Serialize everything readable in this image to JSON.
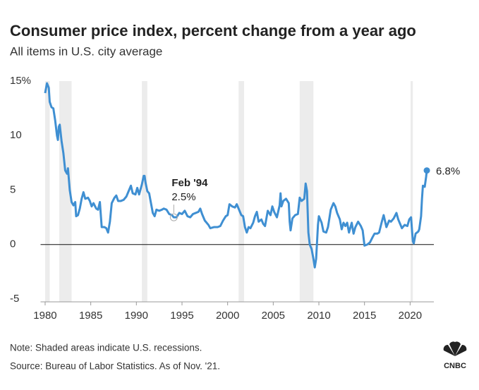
{
  "chart_data": {
    "type": "line",
    "title": "Consumer price index, percent change from a year ago",
    "subtitle": "All items in U.S. city average",
    "note": "Note: Shaded areas indicate U.S. recessions.",
    "source": "Source: Bureau of Labor Statistics. As of Nov. '21.",
    "brand": "CNBC",
    "xlim": [
      1979.5,
      2022.6
    ],
    "xticks": [
      1980,
      1985,
      1990,
      1995,
      2000,
      2005,
      2010,
      2015,
      2020
    ],
    "ylim": [
      -5,
      15
    ],
    "yticks": [
      {
        "value": 15,
        "label": "15%"
      },
      10,
      5,
      0,
      -5
    ],
    "grid": false,
    "recessions": [
      [
        1980.0,
        1980.5
      ],
      [
        1981.55,
        1982.9
      ],
      [
        1990.6,
        1991.2
      ],
      [
        2001.2,
        2001.8
      ],
      [
        2007.9,
        2009.4
      ],
      [
        2020.05,
        2020.3
      ]
    ],
    "recession_color": "#ececec",
    "x": [
      1980.0,
      1980.2,
      1980.4,
      1980.5,
      1980.7,
      1980.9,
      1981.1,
      1981.3,
      1981.4,
      1981.5,
      1981.6,
      1981.8,
      1982.0,
      1982.2,
      1982.4,
      1982.5,
      1982.7,
      1982.9,
      1983.1,
      1983.3,
      1983.4,
      1983.6,
      1983.8,
      1984.0,
      1984.2,
      1984.4,
      1984.7,
      1984.9,
      1985.1,
      1985.3,
      1985.6,
      1985.8,
      1986.0,
      1986.2,
      1986.5,
      1986.7,
      1986.9,
      1987.1,
      1987.3,
      1987.6,
      1987.8,
      1988.0,
      1988.3,
      1988.6,
      1988.9,
      1989.2,
      1989.4,
      1989.6,
      1989.9,
      1990.1,
      1990.3,
      1990.6,
      1990.8,
      1990.9,
      1991.0,
      1991.2,
      1991.4,
      1991.6,
      1991.8,
      1992.0,
      1992.2,
      1992.5,
      1992.8,
      1993.0,
      1993.3,
      1993.6,
      1993.9,
      1994.1,
      1994.4,
      1994.7,
      1995.0,
      1995.3,
      1995.6,
      1995.9,
      1996.2,
      1996.5,
      1996.8,
      1997.0,
      1997.2,
      1997.5,
      1997.9,
      1998.1,
      1998.5,
      1998.9,
      1999.2,
      1999.5,
      1999.8,
      2000.0,
      2000.2,
      2000.5,
      2000.8,
      2001.0,
      2001.2,
      2001.5,
      2001.7,
      2001.9,
      2002.1,
      2002.3,
      2002.5,
      2002.8,
      2003.0,
      2003.2,
      2003.4,
      2003.7,
      2003.9,
      2004.1,
      2004.4,
      2004.7,
      2004.9,
      2005.1,
      2005.4,
      2005.7,
      2005.8,
      2005.9,
      2006.1,
      2006.4,
      2006.7,
      2006.8,
      2006.9,
      2007.1,
      2007.4,
      2007.7,
      2007.9,
      2008.1,
      2008.4,
      2008.55,
      2008.7,
      2008.85,
      2009.0,
      2009.2,
      2009.4,
      2009.55,
      2009.7,
      2009.9,
      2010.0,
      2010.3,
      2010.5,
      2010.8,
      2011.0,
      2011.3,
      2011.6,
      2011.8,
      2012.0,
      2012.3,
      2012.5,
      2012.7,
      2012.9,
      2013.1,
      2013.3,
      2013.6,
      2013.8,
      2014.0,
      2014.3,
      2014.6,
      2014.8,
      2015.0,
      2015.3,
      2015.6,
      2015.9,
      2016.1,
      2016.4,
      2016.6,
      2016.9,
      2017.1,
      2017.4,
      2017.7,
      2017.9,
      2018.2,
      2018.5,
      2018.7,
      2018.9,
      2019.1,
      2019.4,
      2019.7,
      2019.9,
      2020.1,
      2020.3,
      2020.4,
      2020.6,
      2020.9,
      2021.0,
      2021.2,
      2021.3,
      2021.4,
      2021.6,
      2021.75,
      2021.83
    ],
    "series": [
      {
        "name": "CPI",
        "color": "#3f8fd2",
        "values": [
          13.9,
          14.8,
          14.4,
          13.1,
          12.6,
          12.5,
          11.4,
          10.0,
          9.6,
          10.8,
          11.0,
          9.5,
          8.4,
          6.8,
          6.5,
          7.0,
          5.0,
          3.9,
          3.6,
          3.9,
          2.6,
          2.7,
          3.3,
          4.2,
          4.8,
          4.2,
          4.3,
          4.0,
          3.5,
          3.8,
          3.3,
          3.2,
          3.9,
          1.6,
          1.6,
          1.5,
          1.1,
          2.1,
          3.8,
          4.3,
          4.5,
          4.0,
          4.0,
          4.1,
          4.4,
          5.0,
          5.4,
          4.7,
          4.6,
          5.2,
          4.6,
          5.5,
          6.3,
          6.3,
          5.7,
          4.9,
          4.7,
          3.8,
          2.9,
          2.6,
          3.2,
          3.1,
          3.2,
          3.3,
          3.2,
          2.8,
          2.7,
          2.5,
          2.5,
          2.9,
          2.8,
          3.1,
          2.6,
          2.5,
          2.8,
          2.9,
          3.0,
          3.3,
          2.8,
          2.2,
          1.8,
          1.5,
          1.6,
          1.6,
          1.7,
          2.2,
          2.6,
          2.7,
          3.7,
          3.5,
          3.4,
          3.7,
          3.3,
          2.7,
          2.6,
          1.6,
          1.1,
          1.6,
          1.5,
          2.0,
          2.6,
          3.0,
          2.1,
          2.3,
          1.9,
          1.7,
          3.1,
          2.7,
          3.5,
          3.0,
          2.5,
          3.6,
          4.7,
          3.5,
          4.0,
          4.2,
          3.8,
          2.1,
          1.3,
          2.4,
          2.7,
          2.8,
          4.3,
          4.0,
          4.2,
          5.6,
          4.9,
          1.1,
          0.0,
          -0.4,
          -1.3,
          -2.1,
          -1.3,
          1.8,
          2.6,
          2.0,
          1.2,
          1.1,
          1.6,
          3.2,
          3.8,
          3.5,
          2.9,
          2.3,
          1.4,
          2.0,
          1.7,
          2.0,
          1.1,
          2.0,
          1.0,
          1.6,
          2.1,
          1.7,
          1.3,
          -0.1,
          0.0,
          0.2,
          0.7,
          1.0,
          1.0,
          1.1,
          2.1,
          2.7,
          1.6,
          2.2,
          2.1,
          2.4,
          2.9,
          2.3,
          1.9,
          1.5,
          1.8,
          1.7,
          2.3,
          2.5,
          0.3,
          0.1,
          1.0,
          1.2,
          1.4,
          2.6,
          4.2,
          5.4,
          5.3,
          6.2,
          6.8
        ]
      }
    ],
    "annotations": [
      {
        "x": 1994.1,
        "y": 2.5,
        "title": "Feb '94",
        "label": "2.5%"
      },
      {
        "x": 2021.83,
        "y": 6.8,
        "label": "6.8%"
      }
    ]
  }
}
